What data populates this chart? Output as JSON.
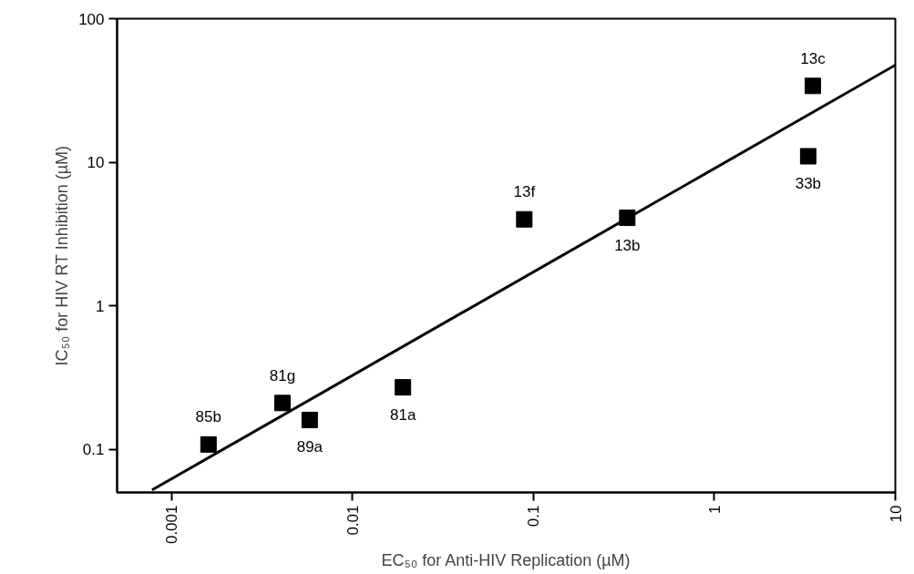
{
  "chart_data": {
    "type": "scatter",
    "xlabel": "EC₅₀ for Anti-HIV Replication (µM)",
    "ylabel": "IC₅₀ for HIV RT Inhibition (µM)",
    "log": "xy",
    "grid": false,
    "xlim": [
      0.0005,
      10
    ],
    "ylim": [
      0.05,
      100
    ],
    "xticks": [
      0.001,
      0.01,
      0.1,
      1,
      10
    ],
    "yticks": [
      0.1,
      1,
      10,
      100
    ],
    "series": [
      {
        "marker": "square",
        "color": "#000000",
        "x": [
          0.0016,
          0.0041,
          0.0058,
          0.019,
          0.089,
          0.33,
          3.5,
          3.3
        ],
        "values": [
          0.108,
          0.21,
          0.16,
          0.27,
          4.0,
          4.1,
          34,
          11
        ]
      },
      {
        "type": "line",
        "marker": "none",
        "color": "#000000",
        "line_style": "solid",
        "x": [
          0.00078,
          10
        ],
        "values": [
          0.052,
          47.5
        ]
      }
    ],
    "annotations": [
      {
        "text": "85b",
        "x": 0.0016,
        "y": 0.108
      },
      {
        "text": "81g",
        "x": 0.0041,
        "y": 0.21
      },
      {
        "text": "89a",
        "x": 0.0058,
        "y": 0.16
      },
      {
        "text": "81a",
        "x": 0.019,
        "y": 0.27
      },
      {
        "text": "13f",
        "x": 0.089,
        "y": 4.0
      },
      {
        "text": "13b",
        "x": 0.33,
        "y": 4.1
      },
      {
        "text": "13c",
        "x": 3.5,
        "y": 34
      },
      {
        "text": "33b",
        "x": 3.3,
        "y": 11
      }
    ]
  }
}
